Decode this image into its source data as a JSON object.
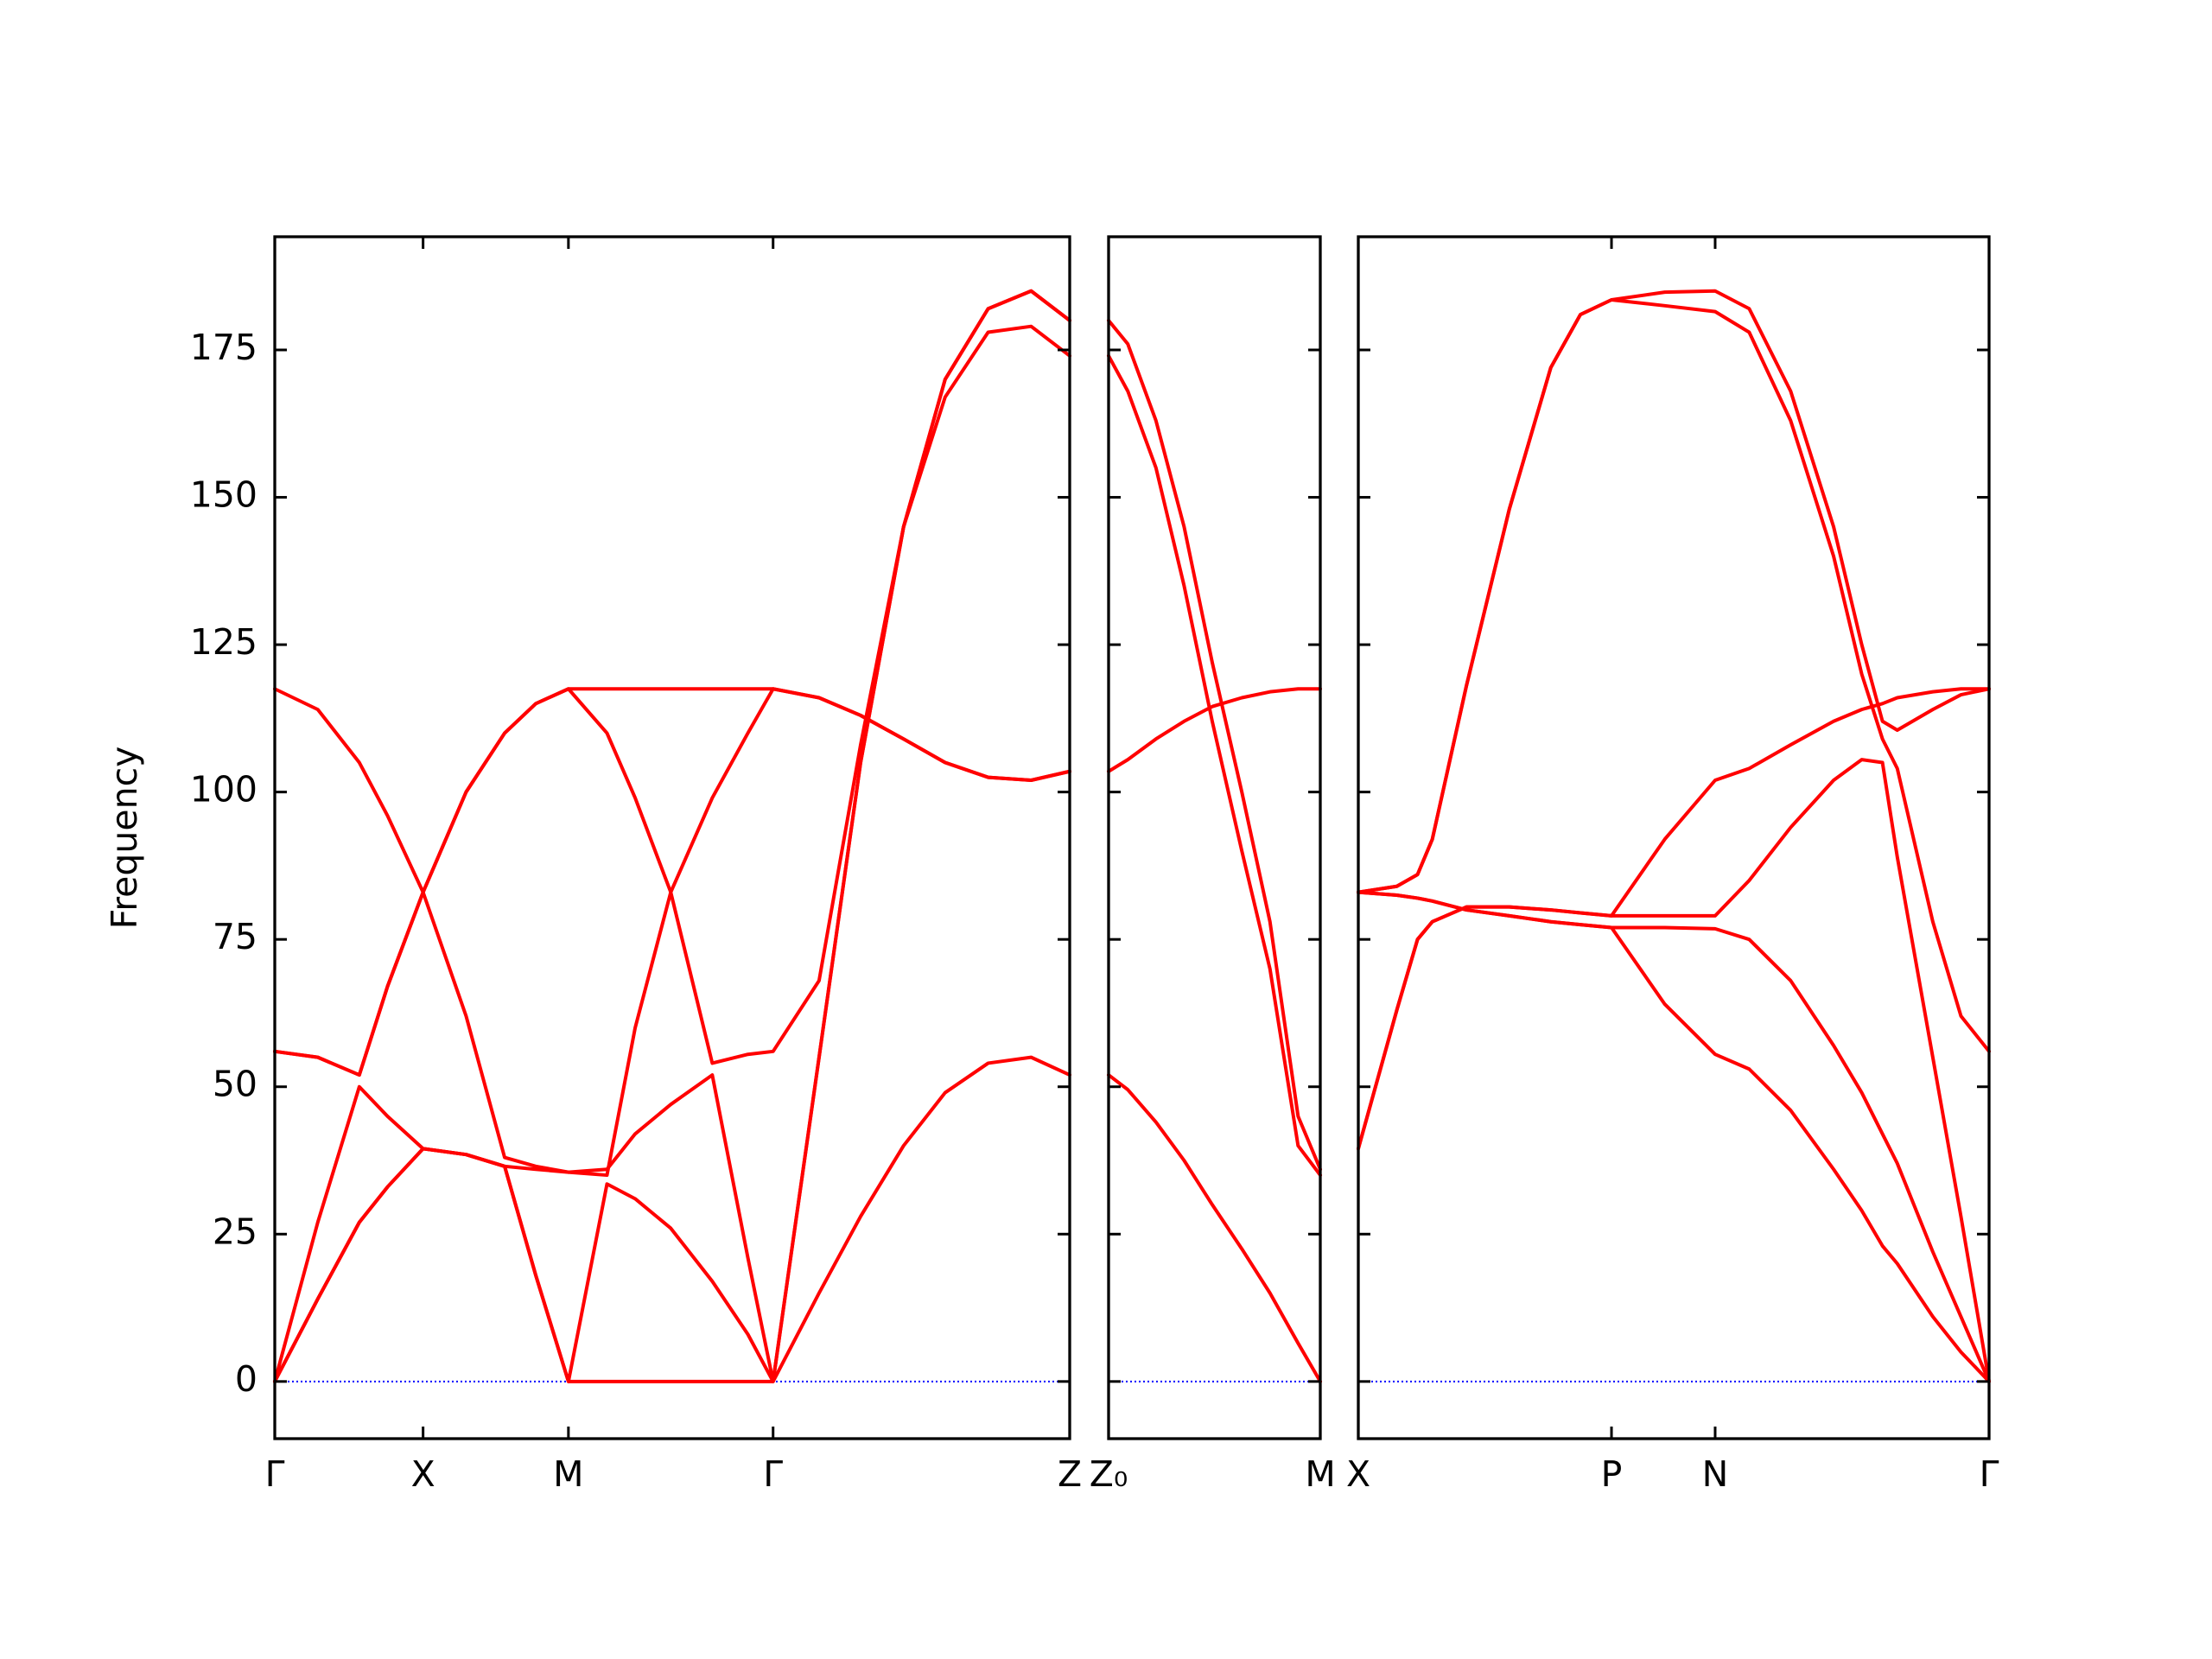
{
  "chart_data": [
    {
      "type": "line",
      "ylabel": "Frequency",
      "color": "red",
      "ylim": [
        -9.7,
        194.2
      ],
      "yticks": [
        0,
        25,
        50,
        75,
        100,
        125,
        150,
        175
      ],
      "show_ytick_labels": true,
      "hlines": [
        0
      ],
      "hline_color": "blue",
      "xlim": [
        0,
        5.36
      ],
      "xticks": [
        {
          "value": 0,
          "label": "Γ"
        },
        {
          "value": 1.0,
          "label": "X"
        },
        {
          "value": 1.98,
          "label": "M"
        },
        {
          "value": 3.36,
          "label": "Γ"
        },
        {
          "value": 5.36,
          "label": "Z"
        }
      ],
      "x": [
        0,
        0.29,
        0.57,
        0.76,
        1.0,
        1.29,
        1.55,
        1.76,
        1.98,
        2.24,
        2.43,
        2.67,
        2.95,
        3.19,
        3.36,
        3.67,
        3.95,
        4.24,
        4.52,
        4.81,
        5.1,
        5.36
      ],
      "series": [
        {
          "values": [
            0,
            14,
            27,
            33,
            39.5,
            38.5,
            36.5,
            18,
            0,
            0,
            0,
            0,
            0,
            0,
            0,
            15,
            28,
            40,
            49,
            54,
            55,
            52
          ]
        },
        {
          "values": [
            0,
            27,
            50,
            45,
            39.5,
            38.5,
            36.5,
            36,
            35.5,
            36,
            42,
            47,
            52,
            21,
            0,
            55,
            105,
            145,
            170,
            182,
            185,
            180
          ]
        },
        {
          "values": [
            56,
            55,
            52,
            67,
            83,
            100,
            110,
            115,
            117.5,
            117.5,
            117.5,
            117.5,
            117.5,
            117.5,
            117.5,
            116,
            113,
            109,
            105,
            102.5,
            102,
            103.5
          ]
        },
        {
          "values": [
            117.5,
            114,
            105,
            96,
            83,
            62,
            38,
            36.5,
            35.5,
            35,
            60,
            83,
            54,
            55.5,
            56,
            68,
            108,
            145,
            167,
            178,
            179,
            174
          ]
        },
        {
          "values": [
            56,
            55,
            52,
            67,
            83,
            100,
            110,
            115,
            117.5,
            110,
            99,
            83,
            99,
            110,
            117.5,
            116,
            113,
            109,
            105,
            102.5,
            102,
            103.5
          ]
        },
        {
          "values": [
            0,
            14,
            27,
            33,
            39.5,
            38.5,
            36.5,
            18,
            0,
            33.5,
            31,
            26,
            17,
            8,
            0,
            55,
            105,
            145,
            170,
            182,
            185,
            180
          ]
        }
      ]
    },
    {
      "type": "line",
      "color": "red",
      "ylim": [
        -9.7,
        194.2
      ],
      "yticks": [
        0,
        25,
        50,
        75,
        100,
        125,
        150,
        175
      ],
      "show_ytick_labels": false,
      "hlines": [
        0
      ],
      "hline_color": "blue",
      "xlim": [
        0,
        1.43
      ],
      "xticks": [
        {
          "value": 0,
          "label": "Z₀"
        },
        {
          "value": 1.43,
          "label": "M"
        }
      ],
      "x": [
        0,
        0.13,
        0.32,
        0.51,
        0.7,
        0.9,
        1.09,
        1.28,
        1.43
      ],
      "series": [
        {
          "values": [
            52,
            49.5,
            44,
            37.5,
            30,
            22.5,
            15,
            6.5,
            0
          ]
        },
        {
          "values": [
            103.5,
            105.5,
            109,
            112,
            114.5,
            116,
            117,
            117.5,
            117.5
          ]
        },
        {
          "values": [
            180,
            176,
            163,
            145,
            122,
            100,
            78,
            45,
            36
          ]
        },
        {
          "values": [
            174,
            168,
            155,
            135,
            112,
            90,
            70,
            40,
            35
          ]
        }
      ]
    },
    {
      "type": "line",
      "color": "red",
      "ylim": [
        -9.7,
        194.2
      ],
      "yticks": [
        0,
        25,
        50,
        75,
        100,
        125,
        150,
        175
      ],
      "show_ytick_labels": false,
      "hlines": [
        0
      ],
      "hline_color": "blue",
      "xlim": [
        0,
        4.26
      ],
      "xticks": [
        {
          "value": 0,
          "label": "X"
        },
        {
          "value": 1.71,
          "label": "P"
        },
        {
          "value": 2.41,
          "label": "N"
        },
        {
          "value": 4.26,
          "label": "Γ"
        }
      ],
      "x": [
        0,
        0.26,
        0.4,
        0.5,
        0.73,
        1.02,
        1.3,
        1.5,
        1.71,
        2.07,
        2.41,
        2.64,
        2.92,
        3.21,
        3.4,
        3.54,
        3.64,
        3.88,
        4.07,
        4.26
      ],
      "series": [
        {
          "values": [
            83,
            84,
            86,
            92,
            118,
            148,
            172,
            181,
            183.5,
            184.8,
            185,
            182,
            168,
            145,
            125,
            112,
            110.5,
            114,
            116.5,
            117.5
          ]
        },
        {
          "values": [
            83,
            84,
            86,
            92,
            118,
            148,
            172,
            181,
            183.5,
            182.5,
            181.5,
            178,
            163,
            140,
            120,
            109,
            104,
            78,
            62,
            56
          ]
        },
        {
          "values": [
            83,
            82.5,
            82,
            81.5,
            80,
            79,
            78,
            77.5,
            77,
            77,
            76.8,
            75,
            68,
            57,
            49,
            42,
            37,
            22,
            11,
            0
          ]
        },
        {
          "values": [
            39.5,
            63,
            75,
            78,
            80.5,
            80.5,
            80,
            79.5,
            79,
            92,
            102,
            104,
            108,
            112,
            114,
            115,
            116,
            117,
            117.5,
            117.5
          ]
        },
        {
          "values": [
            39.5,
            63,
            75,
            78,
            80.5,
            80.5,
            80,
            79.5,
            79,
            79,
            79,
            85,
            94,
            102,
            105.5,
            105,
            89,
            55,
            28,
            0
          ]
        },
        {
          "values": [
            83,
            82.5,
            82,
            81.5,
            80,
            79,
            78,
            77.5,
            77,
            64,
            55.5,
            53,
            46,
            36,
            29,
            23,
            20,
            11,
            5,
            0
          ]
        }
      ]
    }
  ]
}
